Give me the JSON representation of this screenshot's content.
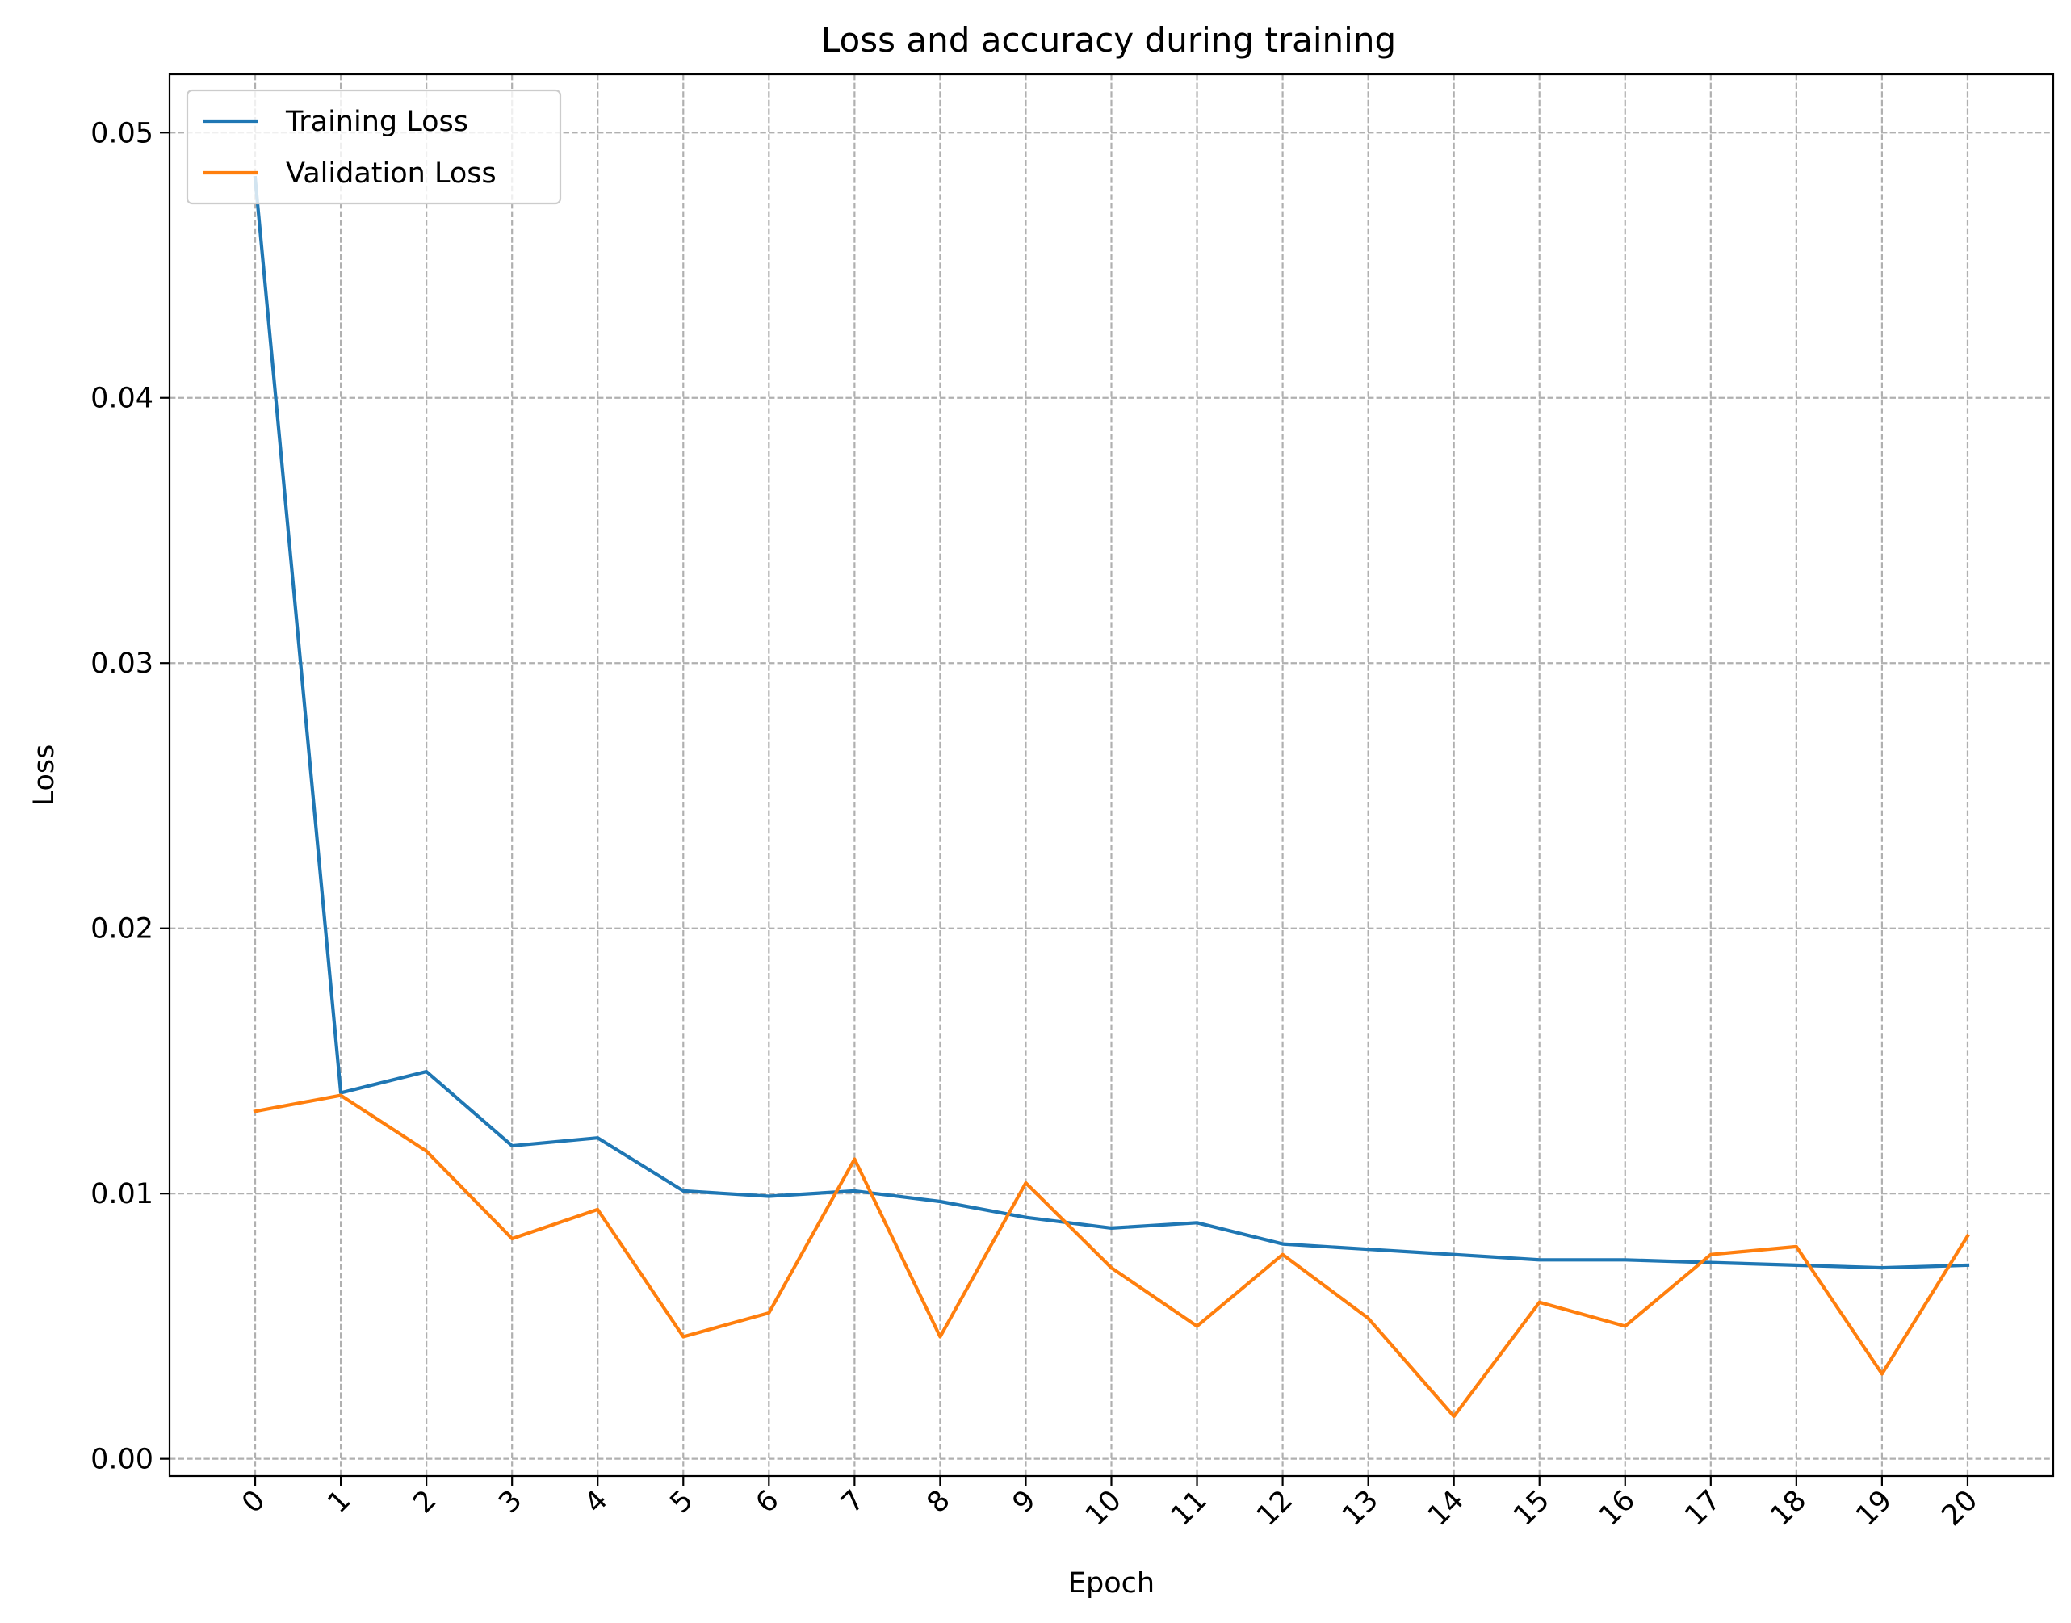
{
  "chart_data": {
    "type": "line",
    "title": "Loss and accuracy during training",
    "xlabel": "Epoch",
    "ylabel": "Loss",
    "x": [
      0,
      1,
      2,
      3,
      4,
      5,
      6,
      7,
      8,
      9,
      10,
      11,
      12,
      13,
      14,
      15,
      16,
      17,
      18,
      19,
      20
    ],
    "x_ticks": [
      "0",
      "1",
      "2",
      "3",
      "4",
      "5",
      "6",
      "7",
      "8",
      "9",
      "10",
      "11",
      "12",
      "13",
      "14",
      "15",
      "16",
      "17",
      "18",
      "19",
      "20"
    ],
    "y_ticks": [
      "0.00",
      "0.01",
      "0.02",
      "0.03",
      "0.04",
      "0.05"
    ],
    "y_tick_values": [
      0.0,
      0.01,
      0.02,
      0.03,
      0.04,
      0.05
    ],
    "xlim": [
      -1,
      21
    ],
    "ylim": [
      -0.00065,
      0.0522
    ],
    "grid": true,
    "legend_position": "top-left",
    "series": [
      {
        "name": "Training Loss",
        "color": "#1f77b4",
        "values": [
          0.0483,
          0.0138,
          0.0146,
          0.0118,
          0.0121,
          0.0101,
          0.0099,
          0.0101,
          0.0097,
          0.0091,
          0.0087,
          0.0089,
          0.0081,
          0.0079,
          0.0077,
          0.0075,
          0.0075,
          0.0074,
          0.0073,
          0.0072,
          0.0073
        ]
      },
      {
        "name": "Validation Loss",
        "color": "#ff7f0e",
        "values": [
          0.0131,
          0.0137,
          0.0116,
          0.0083,
          0.0094,
          0.0046,
          0.0055,
          0.0113,
          0.0046,
          0.0104,
          0.0072,
          0.005,
          0.0077,
          0.0053,
          0.0016,
          0.0059,
          0.005,
          0.0077,
          0.008,
          0.0032,
          0.0084
        ]
      }
    ]
  }
}
